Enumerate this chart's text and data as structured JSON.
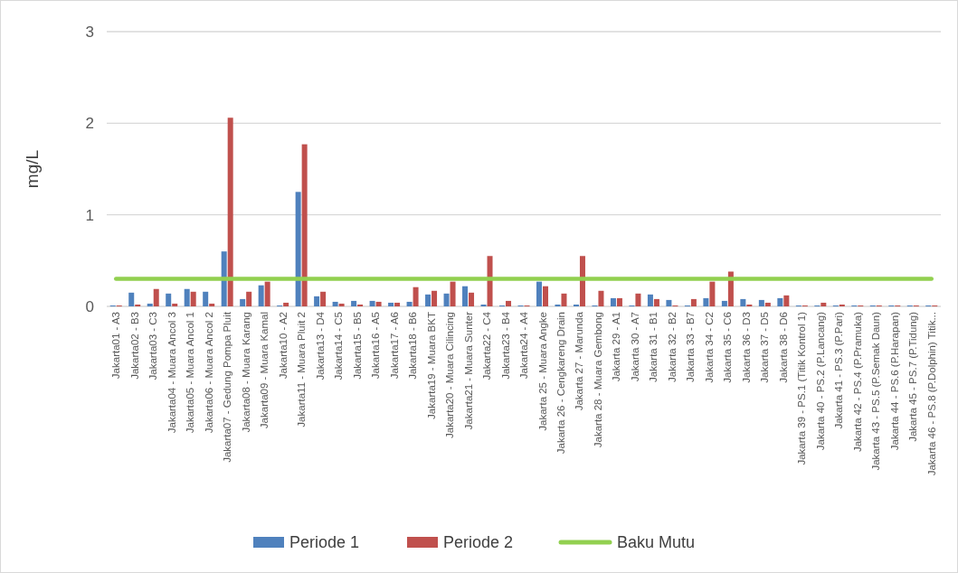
{
  "chart_data": {
    "type": "bar",
    "ylabel": "mg/L",
    "ylim": [
      0,
      3
    ],
    "yticks": [
      0,
      1,
      2,
      3
    ],
    "grid": "y",
    "legend": "bottom",
    "categories": [
      "Jakarta01 - A3",
      "Jakarta02 - B3",
      "Jakarta03 - C3",
      "Jakarta04 - Muara Ancol 3",
      "Jakarta05 - Muara Ancol 1",
      "Jakarta06 - Muara Ancol 2",
      "Jakarta07 - Gedung Pompa Pluit",
      "Jakarta08 - Muara Karang",
      "Jakarta09 - Muara Kamal",
      "Jakarta10 - A2",
      "Jakarta11 - Muara Pluit 2",
      "Jakarta13 - D4",
      "Jakarta14 - C5",
      "Jakarta15 - B5",
      "Jakarta16 - A5",
      "Jakarta17 - A6",
      "Jakarta18 - B6",
      "Jakarta19 - Muara BKT",
      "Jakarta20 - Muara Cilincing",
      "Jakarta21 - Muara Sunter",
      "Jakarta22 - C4",
      "Jakarta23 - B4",
      "Jakarta24 - A4",
      "Jakarta 25 - Muara Angke",
      "Jakarta 26 - Cengkareng Drain",
      "Jakarta 27 - Marunda",
      "Jakarta 28 - Muara Gembong",
      "Jakarta 29 - A1",
      "Jakarta 30 - A7",
      "Jakarta 31 - B1",
      "Jakarta 32 - B2",
      "Jakarta 33 - B7",
      "Jakarta 34 - C2",
      "Jakarta 35 - C6",
      "Jakarta 36 - D3",
      "Jakarta 37 - D5",
      "Jakarta 38 - D6",
      "Jakarta 39 - PS.1 (Titik Kontrol 1)",
      "Jakarta 40 - PS.2 (P.Lancang)",
      "Jakarta 41 - PS.3 (P.Pari)",
      "Jakarta 42 - PS.4 (P.Pramuka)",
      "Jakarta 43 - PS.5 (P.Semak Daun)",
      "Jakarta 44 - PS.6 (P.Harapan)",
      "Jakarta 45 - PS.7 (P.Tidung)",
      "Jakarta 46 - PS.8 (P.Dolphin) Titik..."
    ],
    "series": [
      {
        "name": "Periode 1",
        "color": "#4f81bd",
        "values": [
          0.01,
          0.15,
          0.03,
          0.14,
          0.19,
          0.16,
          0.6,
          0.08,
          0.23,
          0.01,
          1.25,
          0.11,
          0.05,
          0.06,
          0.06,
          0.04,
          0.05,
          0.13,
          0.14,
          0.22,
          0.02,
          0.01,
          0.01,
          0.27,
          0.02,
          0.02,
          0.01,
          0.09,
          0.01,
          0.13,
          0.07,
          0.01,
          0.09,
          0.06,
          0.08,
          0.07,
          0.09,
          0.01,
          0.01,
          0.01,
          0.01,
          0.01,
          0.01,
          0.01,
          0.01
        ]
      },
      {
        "name": "Periode 2",
        "color": "#c0504d",
        "values": [
          0.01,
          0.02,
          0.19,
          0.03,
          0.16,
          0.03,
          2.06,
          0.16,
          0.27,
          0.04,
          1.77,
          0.16,
          0.03,
          0.02,
          0.05,
          0.04,
          0.21,
          0.17,
          0.27,
          0.15,
          0.55,
          0.06,
          0.01,
          0.22,
          0.14,
          0.55,
          0.17,
          0.09,
          0.14,
          0.08,
          0.01,
          0.08,
          0.27,
          0.38,
          0.02,
          0.04,
          0.12,
          0.01,
          0.04,
          0.02,
          0.01,
          0.01,
          0.01,
          0.01,
          0.01
        ]
      },
      {
        "name": "Baku Mutu",
        "type": "line",
        "color": "#92d050",
        "values": [
          0.3,
          0.3,
          0.3,
          0.3,
          0.3,
          0.3,
          0.3,
          0.3,
          0.3,
          0.3,
          0.3,
          0.3,
          0.3,
          0.3,
          0.3,
          0.3,
          0.3,
          0.3,
          0.3,
          0.3,
          0.3,
          0.3,
          0.3,
          0.3,
          0.3,
          0.3,
          0.3,
          0.3,
          0.3,
          0.3,
          0.3,
          0.3,
          0.3,
          0.3,
          0.3,
          0.3,
          0.3,
          0.3,
          0.3,
          0.3,
          0.3,
          0.3,
          0.3,
          0.3,
          0.3
        ]
      }
    ]
  }
}
